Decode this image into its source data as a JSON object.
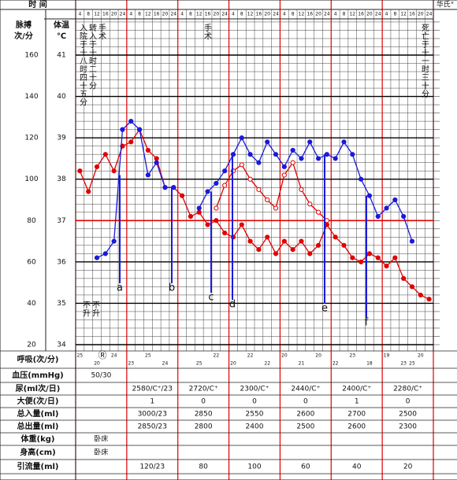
{
  "chart_data": {
    "type": "line",
    "time_label": "时 间",
    "corner_label": "华氏°",
    "y_label": "脉搏",
    "y_unit": "次/分",
    "y2_label": "体温",
    "y2_unit": "℃",
    "categories": [
      4,
      8,
      12,
      16,
      20,
      24,
      4,
      8,
      12,
      16,
      20,
      24,
      4,
      8,
      12,
      16,
      20,
      24,
      4,
      8,
      12,
      16,
      20,
      24,
      4,
      8,
      12,
      16,
      20,
      24,
      4,
      8,
      12,
      16,
      20,
      24,
      4,
      8,
      12,
      16,
      20,
      24
    ],
    "ylim": [
      20,
      160
    ],
    "yticks": [
      20,
      40,
      60,
      80,
      100,
      120,
      140,
      160
    ],
    "y2lim": [
      34,
      41
    ],
    "y2ticks": [
      34,
      35,
      36,
      37,
      38,
      39,
      40,
      41
    ],
    "grid": true,
    "series": [
      {
        "color": "#e00000",
        "marker": "dot",
        "values": [
          104,
          94,
          106,
          112,
          104,
          116,
          118,
          124,
          114,
          110,
          96,
          96,
          92,
          82,
          84,
          78,
          80,
          74,
          72,
          78,
          70,
          66,
          72,
          64,
          70,
          66,
          70,
          64,
          68,
          78,
          72,
          68,
          62,
          60,
          64,
          62,
          58,
          62,
          52,
          48,
          44,
          42
        ]
      },
      {
        "color": "#e00000",
        "marker": "ring",
        "values": [
          null,
          null,
          null,
          null,
          null,
          null,
          null,
          null,
          null,
          null,
          null,
          null,
          null,
          null,
          null,
          null,
          86,
          97,
          104,
          107,
          100,
          95,
          90,
          86,
          102,
          108,
          95,
          88,
          84,
          80,
          null,
          null,
          null,
          null,
          null,
          null,
          null,
          null,
          null,
          null,
          null,
          null
        ]
      },
      {
        "color": "#1a1adc",
        "marker": "dot",
        "axis": "y2",
        "values": [
          null,
          null,
          36.1,
          36.2,
          36.5,
          39.2,
          39.4,
          39.2,
          38.1,
          38.4,
          37.8,
          37.8,
          null,
          null,
          37.3,
          37.7,
          37.9,
          38.2,
          38.6,
          39.0,
          38.6,
          38.4,
          38.9,
          38.6,
          38.3,
          38.7,
          38.5,
          38.9,
          38.5,
          38.6,
          38.5,
          38.9,
          38.6,
          38.0,
          37.6,
          37.1,
          37.3,
          37.5,
          37.1,
          36.5,
          null,
          null
        ]
      }
    ],
    "annotations": [
      {
        "text": "入院于十八时四十五分",
        "color": "#e00000"
      },
      {
        "text": "转入于十时二十分",
        "color": "#e00000"
      },
      {
        "text": "手术",
        "color": "#e00000"
      },
      {
        "text": "手术",
        "color": "#e00000"
      },
      {
        "text": "死亡于十一时三十分",
        "color": "#e00000"
      },
      {
        "text": "不升",
        "color": "#1a1adc"
      },
      {
        "text": "不升",
        "color": "#1a1adc"
      },
      {
        "text": "a",
        "color": "#1a1adc"
      },
      {
        "text": "b",
        "color": "#1a1adc"
      },
      {
        "text": "c",
        "color": "#1a1adc"
      },
      {
        "text": "d",
        "color": "#1a1adc"
      },
      {
        "text": "e",
        "color": "#1a1adc"
      },
      {
        "text": "f",
        "color": "#1a1adc"
      }
    ]
  },
  "respiration": {
    "label": "呼吸(次/分)",
    "note": "Ⓡ",
    "values": [
      25,
      null,
      20,
      null,
      24,
      null,
      23,
      null,
      25,
      null,
      24,
      null,
      null,
      null,
      25,
      null,
      22,
      null,
      20,
      null,
      22,
      null,
      22,
      null,
      20,
      null,
      21,
      null,
      20,
      null,
      22,
      null,
      23,
      null,
      18,
      null,
      19,
      null,
      23,
      25,
      20,
      null
    ]
  },
  "table": {
    "rows": [
      {
        "label": "血压(mmHg)",
        "values": [
          "50/30",
          null,
          null,
          null,
          null,
          null,
          null
        ]
      },
      {
        "label": "尿(ml次/日)",
        "values": [
          null,
          "2580/C⁺/23",
          "2720/C⁺",
          "2300/C⁺",
          "2440/C⁺",
          "2400/C⁺",
          "2280/C⁺"
        ]
      },
      {
        "label": "大便(次/日)",
        "values": [
          null,
          1,
          0,
          0,
          0,
          1,
          0
        ]
      },
      {
        "label": "总入量(ml)",
        "values": [
          null,
          "3000/23",
          2850,
          2550,
          2600,
          2700,
          2500
        ]
      },
      {
        "label": "总出量(ml)",
        "values": [
          null,
          "2850/23",
          2800,
          2400,
          2500,
          2600,
          2300
        ]
      },
      {
        "label": "体重(kg)",
        "values": [
          "卧床",
          null,
          null,
          null,
          null,
          null,
          null
        ]
      },
      {
        "label": "身高(cm)",
        "values": [
          "卧床",
          null,
          null,
          null,
          null,
          null,
          null
        ]
      },
      {
        "label": "引流量(ml)",
        "values": [
          null,
          "120/23",
          80,
          100,
          60,
          40,
          20
        ]
      }
    ]
  }
}
